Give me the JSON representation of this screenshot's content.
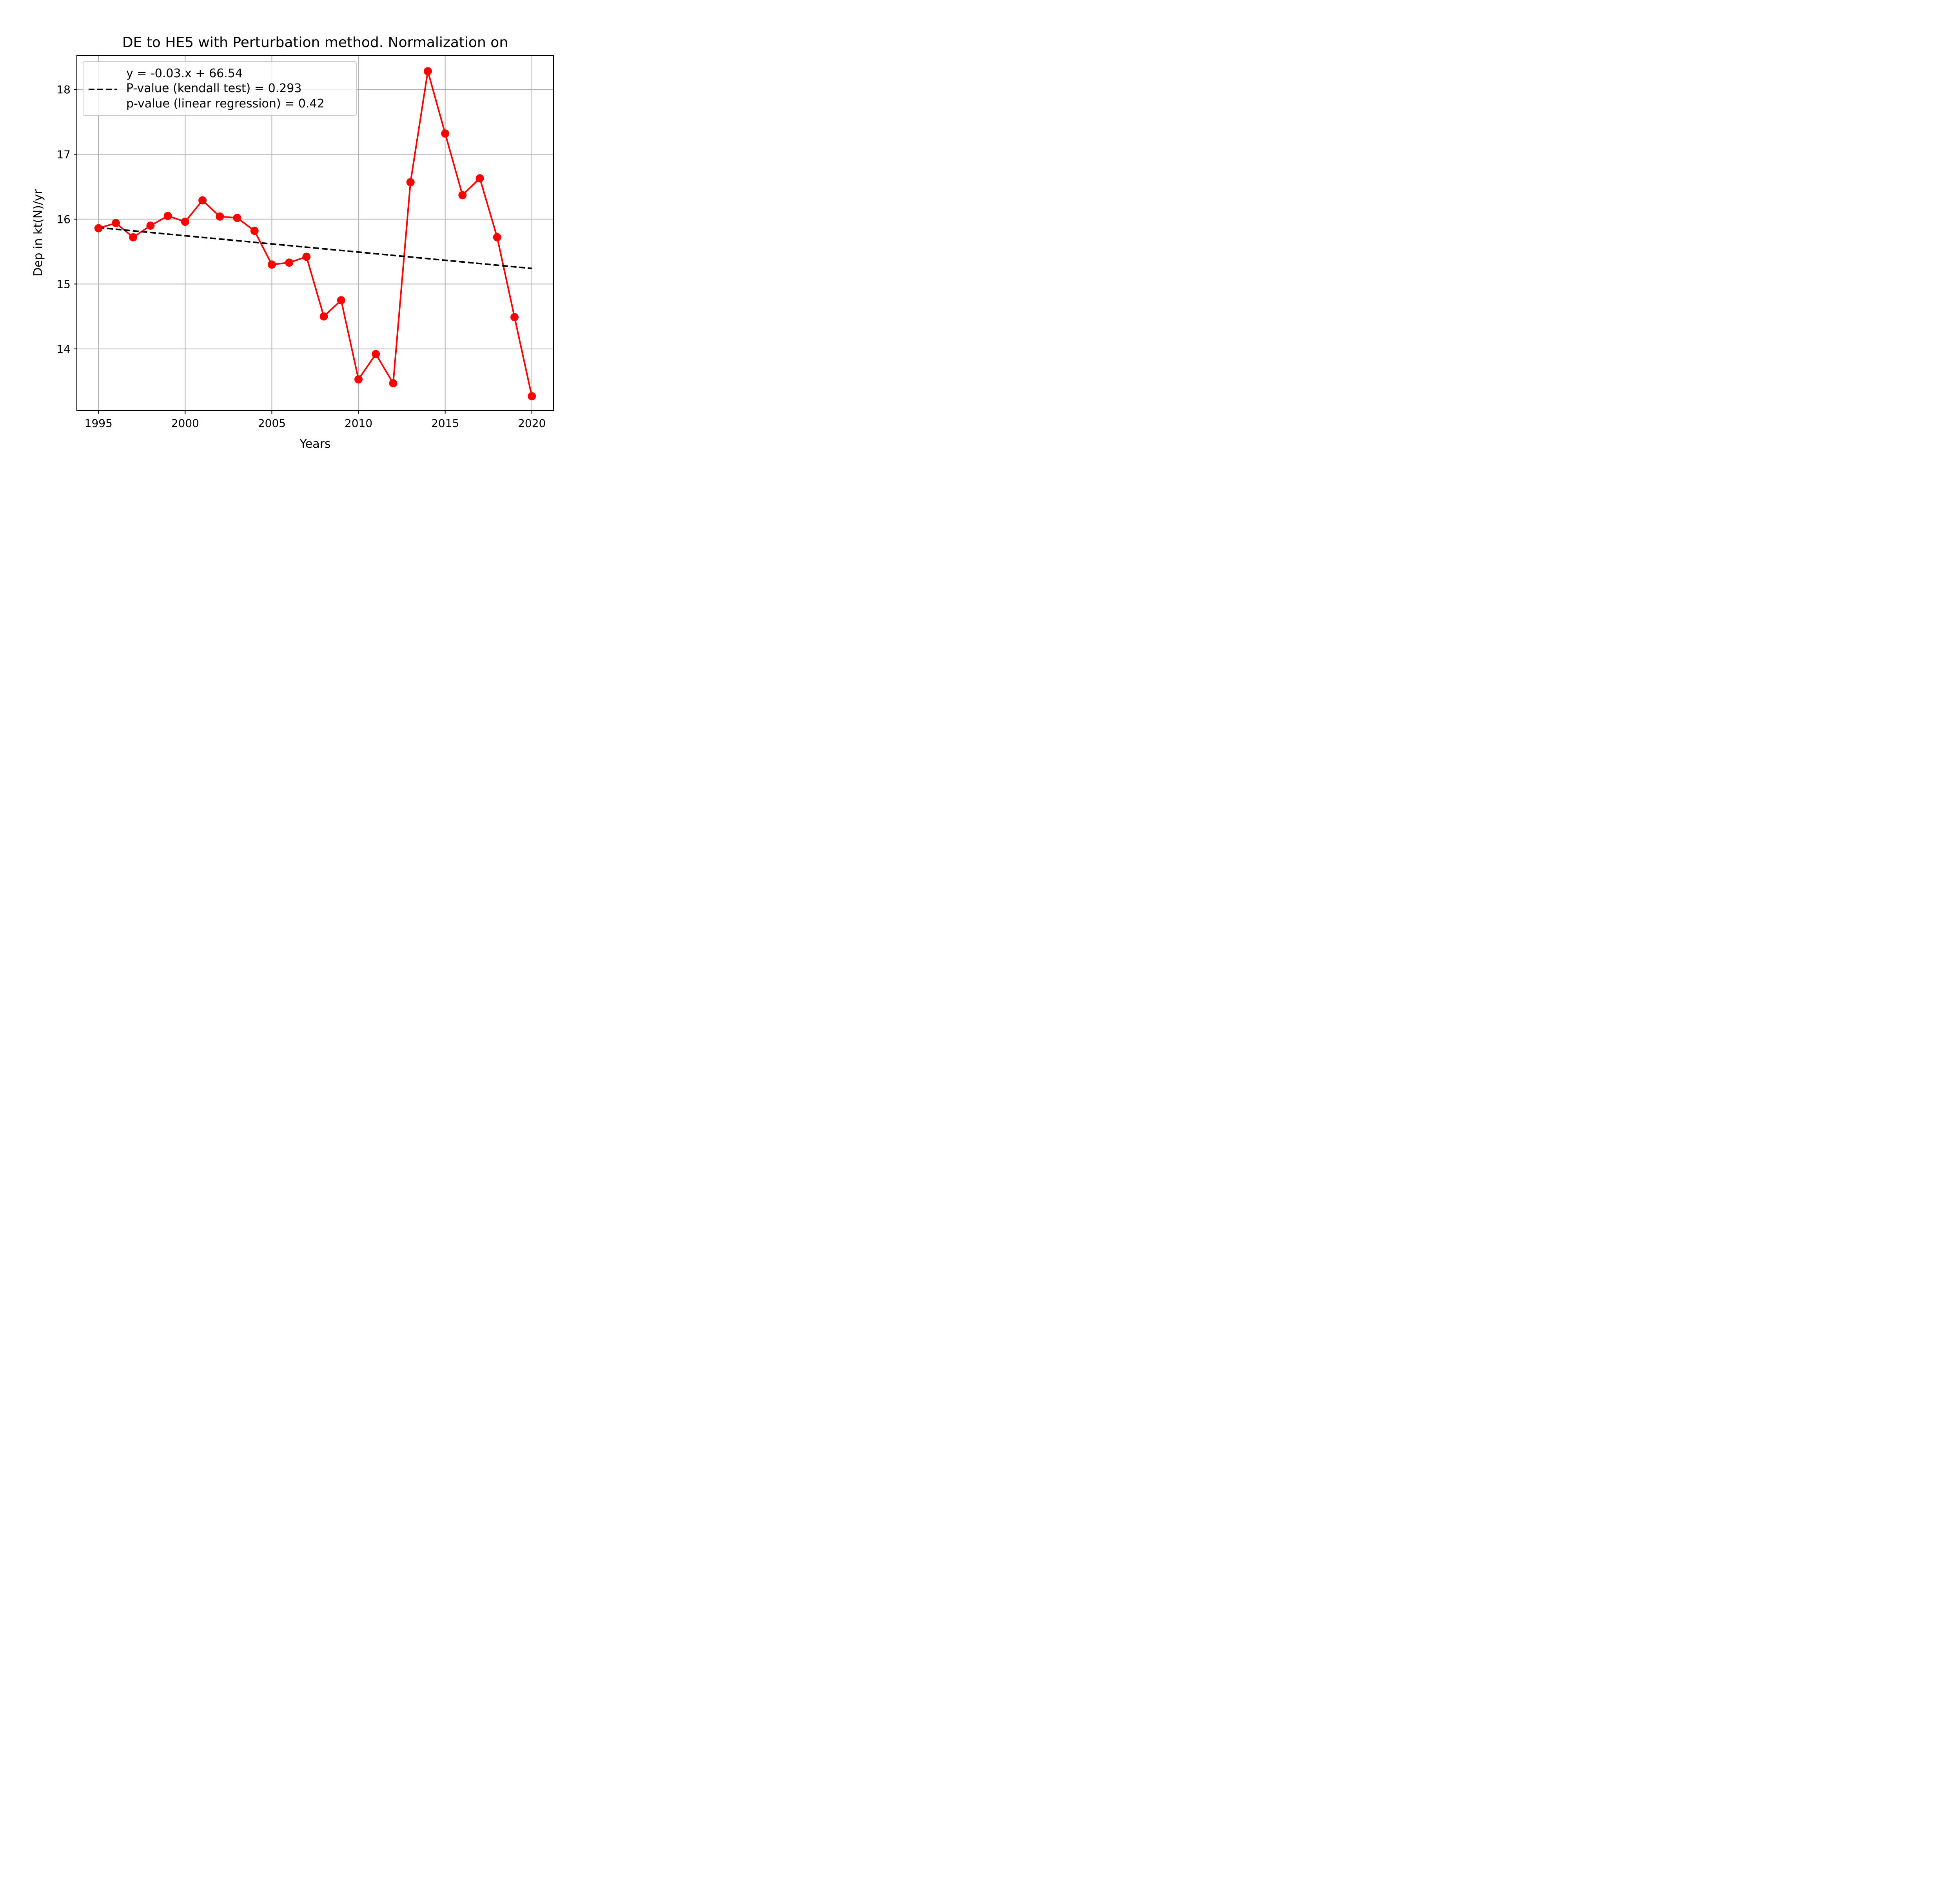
{
  "chart_data": {
    "type": "line",
    "title": "DE to HE5 with Perturbation method. Normalization on",
    "xlabel": "Years",
    "ylabel": "Dep in kt(N)/yr",
    "xlim": [
      1993.75,
      2021.25
    ],
    "ylim": [
      13.05,
      18.52
    ],
    "xticks": [
      1995,
      2000,
      2005,
      2010,
      2015,
      2020
    ],
    "yticks": [
      14,
      15,
      16,
      17,
      18
    ],
    "grid": true,
    "series": [
      {
        "color": "#ff0000",
        "marker": "circle",
        "x": [
          1995,
          1996,
          1997,
          1998,
          1999,
          2000,
          2001,
          2002,
          2003,
          2004,
          2005,
          2006,
          2007,
          2008,
          2009,
          2010,
          2011,
          2012,
          2013,
          2014,
          2015,
          2016,
          2017,
          2018,
          2019,
          2020
        ],
        "y": [
          15.86,
          15.94,
          15.72,
          15.9,
          16.05,
          15.96,
          16.29,
          16.04,
          16.02,
          15.82,
          15.3,
          15.33,
          15.42,
          14.5,
          14.75,
          13.53,
          13.92,
          13.47,
          16.57,
          18.28,
          17.32,
          16.37,
          16.63,
          15.72,
          14.49,
          13.27
        ]
      },
      {
        "name": "y = -0.03.x + 66.54\nP-value (kendall test) = 0.293\np-value (linear regression) = 0.42",
        "color": "#000000",
        "style": "dashed",
        "x": [
          1995,
          2020
        ],
        "y": [
          15.87,
          15.24
        ]
      }
    ],
    "legend": {
      "location": "upper left",
      "lines": [
        "y = -0.03.x + 66.54",
        "P-value (kendall test) = 0.293",
        "p-value (linear regression) = 0.42"
      ]
    }
  }
}
